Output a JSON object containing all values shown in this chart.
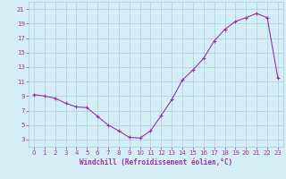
{
  "x": [
    0,
    1,
    2,
    3,
    4,
    5,
    6,
    7,
    8,
    9,
    10,
    11,
    12,
    13,
    14,
    15,
    16,
    17,
    18,
    19,
    20,
    21,
    22,
    23
  ],
  "y": [
    9.2,
    9.0,
    8.7,
    8.0,
    7.5,
    7.4,
    6.2,
    5.0,
    4.2,
    3.3,
    3.2,
    4.2,
    6.3,
    8.5,
    11.2,
    12.6,
    14.2,
    16.6,
    18.2,
    19.3,
    19.8,
    20.4,
    19.8,
    11.5
  ],
  "line_color": "#993399",
  "marker_color": "#993399",
  "bg_color": "#d5eef5",
  "grid_color": "#aaccdd",
  "axis_color": "#993399",
  "xlabel": "Windchill (Refroidissement éolien,°C)",
  "ylim": [
    2,
    22
  ],
  "xlim": [
    -0.5,
    23.5
  ],
  "yticks": [
    3,
    5,
    7,
    9,
    11,
    13,
    15,
    17,
    19,
    21
  ],
  "xticks": [
    0,
    1,
    2,
    3,
    4,
    5,
    6,
    7,
    8,
    9,
    10,
    11,
    12,
    13,
    14,
    15,
    16,
    17,
    18,
    19,
    20,
    21,
    22,
    23
  ]
}
